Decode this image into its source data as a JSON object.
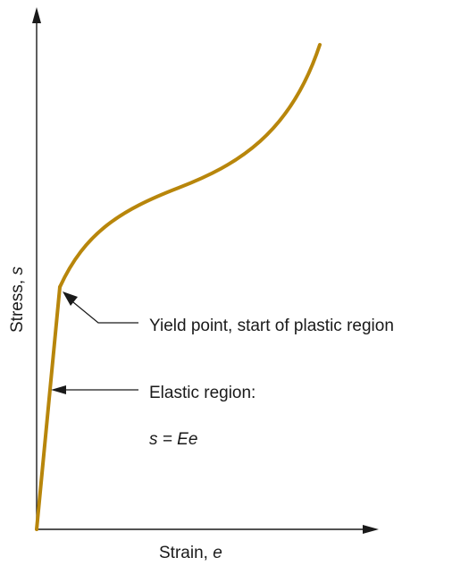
{
  "diagram": {
    "x_axis_label_prefix": "Strain, ",
    "x_axis_symbol": "e",
    "y_axis_label_prefix": "Stress, ",
    "y_axis_symbol": "s",
    "yield_label": "Yield point, start of plastic region",
    "elastic_label_line1": "Elastic region:",
    "elastic_label_line2": "s = Ee",
    "curve_color": "#b8860b",
    "axis_color": "#1a1a1a"
  }
}
